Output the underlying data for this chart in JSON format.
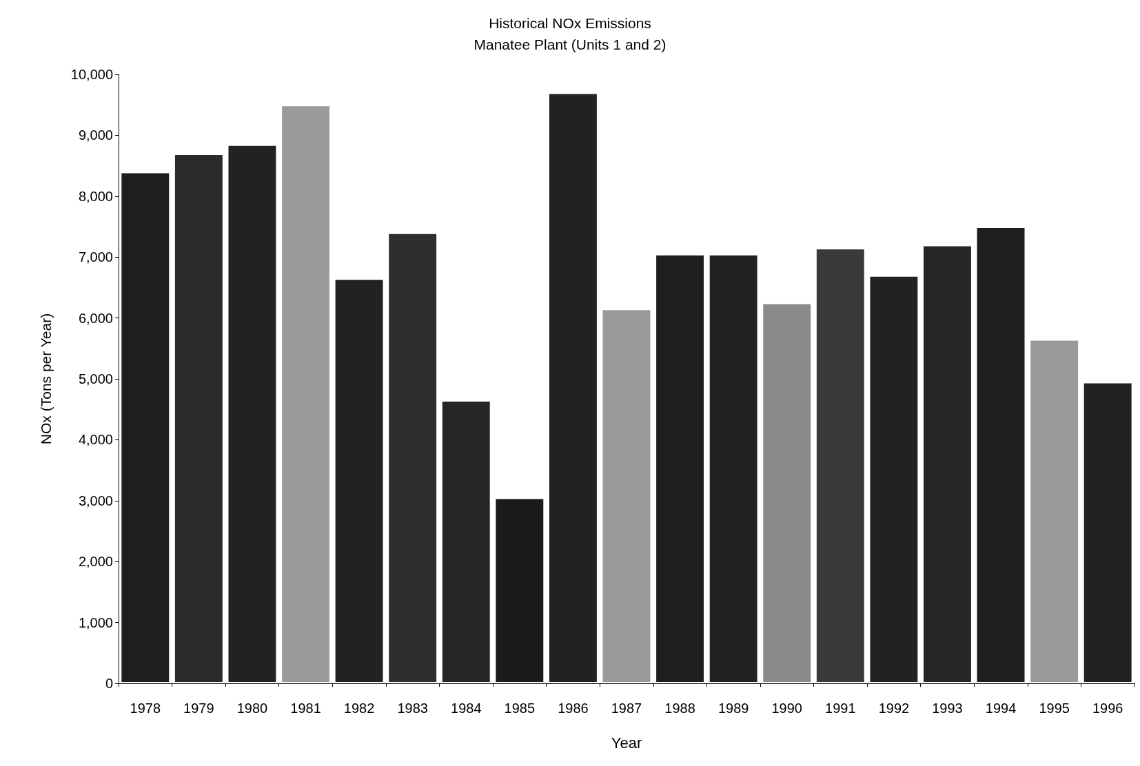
{
  "chart_data": {
    "type": "bar",
    "title": "Historical NOx Emissions",
    "subtitle": "Manatee Plant (Units 1 and 2)",
    "xlabel": "Year",
    "ylabel": "NOx (Tons per Year)",
    "categories": [
      "1978",
      "1979",
      "1980",
      "1981",
      "1982",
      "1983",
      "1984",
      "1985",
      "1986",
      "1987",
      "1988",
      "1989",
      "1990",
      "1991",
      "1992",
      "1993",
      "1994",
      "1995",
      "1996"
    ],
    "values": [
      8400,
      8700,
      8850,
      9500,
      6650,
      7400,
      4650,
      3050,
      9700,
      6150,
      7050,
      7050,
      6250,
      7150,
      6700,
      7200,
      7500,
      5650,
      4950
    ],
    "colors": [
      "#1e1e1e",
      "#2a2a2a",
      "#222222",
      "#9a9a9a",
      "#222222",
      "#2e2e2e",
      "#262626",
      "#1a1a1a",
      "#222222",
      "#9a9a9a",
      "#1e1e1e",
      "#222222",
      "#8a8a8a",
      "#3a3a3a",
      "#222222",
      "#262626",
      "#1e1e1e",
      "#9a9a9a",
      "#222222"
    ],
    "ylim": [
      0,
      10000
    ],
    "yticks": [
      0,
      {
        "value": 1000,
        "label": "1,000"
      },
      {
        "value": 2000,
        "label": "2,000"
      },
      {
        "value": 3000,
        "label": "3,000"
      },
      {
        "value": 4000,
        "label": "4,000"
      },
      {
        "value": 5000,
        "label": "5,000"
      },
      {
        "value": 6000,
        "label": "6,000"
      },
      {
        "value": 7000,
        "label": "7,000"
      },
      {
        "value": 8000,
        "label": "8,000"
      },
      {
        "value": 9000,
        "label": "9,000"
      },
      {
        "value": 10000,
        "label": "10,000"
      }
    ],
    "grid": false
  }
}
